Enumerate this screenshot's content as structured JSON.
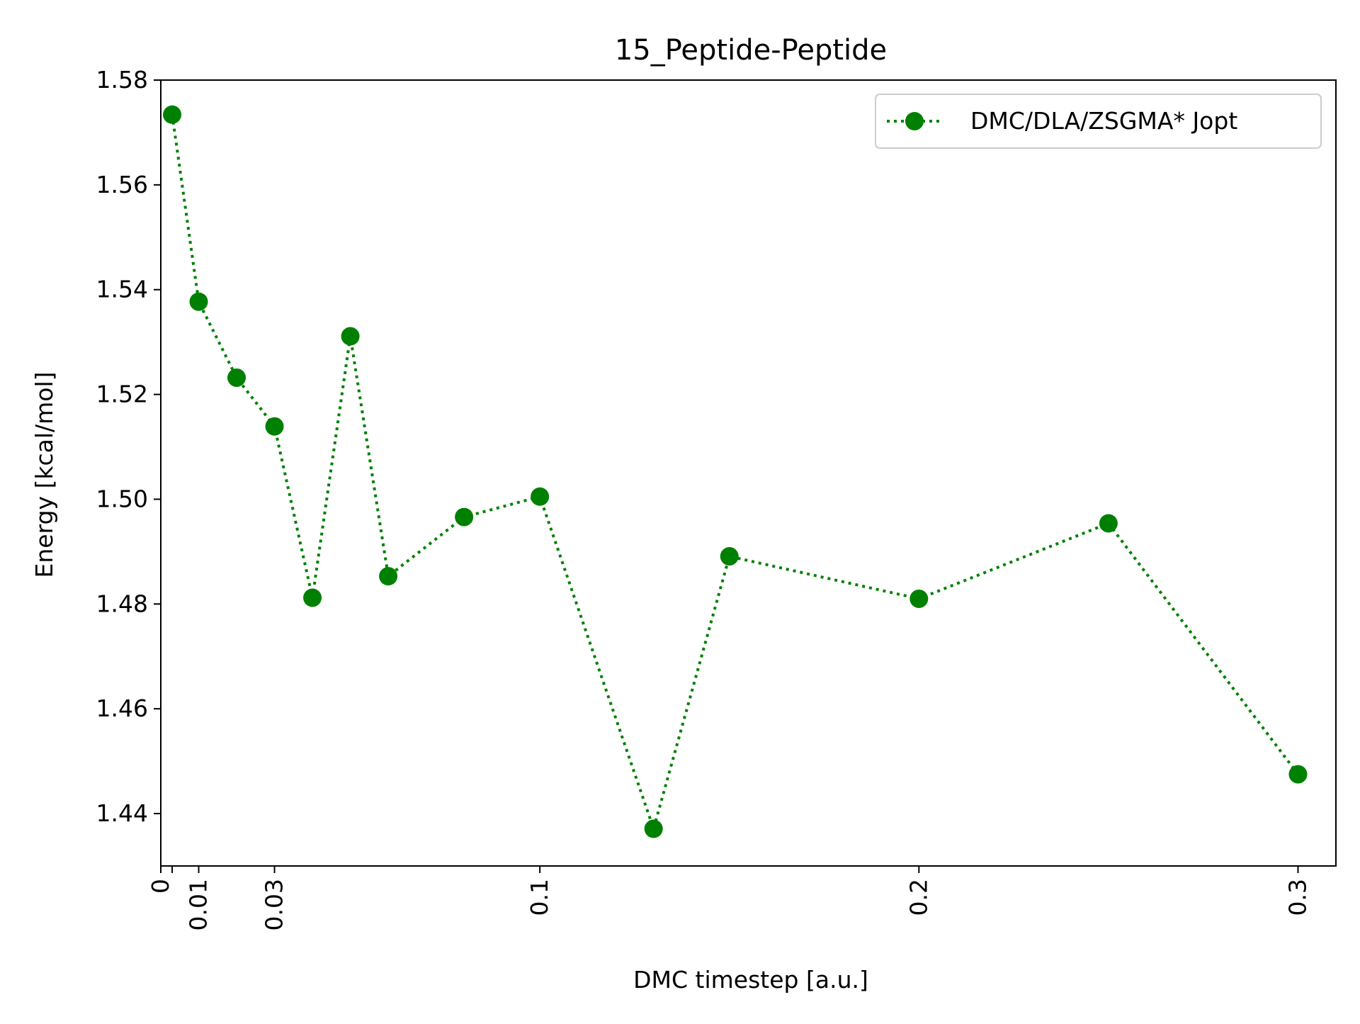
{
  "chart_data": {
    "type": "line",
    "title": "15_Peptide-Peptide",
    "xlabel": "DMC timestep [a.u.]",
    "ylabel": "Energy [kcal/mol]",
    "xlim": [
      0,
      0.31
    ],
    "ylim": [
      1.43,
      1.58
    ],
    "xticks": [
      0,
      0.003,
      0.01,
      0.03,
      0.1,
      0.2,
      0.3
    ],
    "xtick_labels": [
      "0",
      "",
      "0.01",
      "0.03",
      "0.1",
      "0.2",
      "0.3"
    ],
    "yticks": [
      1.44,
      1.46,
      1.48,
      1.5,
      1.52,
      1.54,
      1.56,
      1.58
    ],
    "ytick_labels": [
      "1.44",
      "1.46",
      "1.48",
      "1.50",
      "1.52",
      "1.54",
      "1.56",
      "1.58"
    ],
    "grid": false,
    "legend_position": "top-right",
    "series": [
      {
        "name": "DMC/DLA/ZSGMA* Jopt",
        "color": "#008000",
        "line_style": "dotted",
        "marker": "circle",
        "x": [
          0.003,
          0.01,
          0.02,
          0.03,
          0.04,
          0.05,
          0.06,
          0.08,
          0.1,
          0.13,
          0.15,
          0.2,
          0.25,
          0.3
        ],
        "y": [
          1.5734,
          1.5377,
          1.5232,
          1.5139,
          1.4812,
          1.5311,
          1.4853,
          1.4966,
          1.5005,
          1.4371,
          1.4891,
          1.481,
          1.4954,
          1.4475
        ]
      }
    ]
  }
}
